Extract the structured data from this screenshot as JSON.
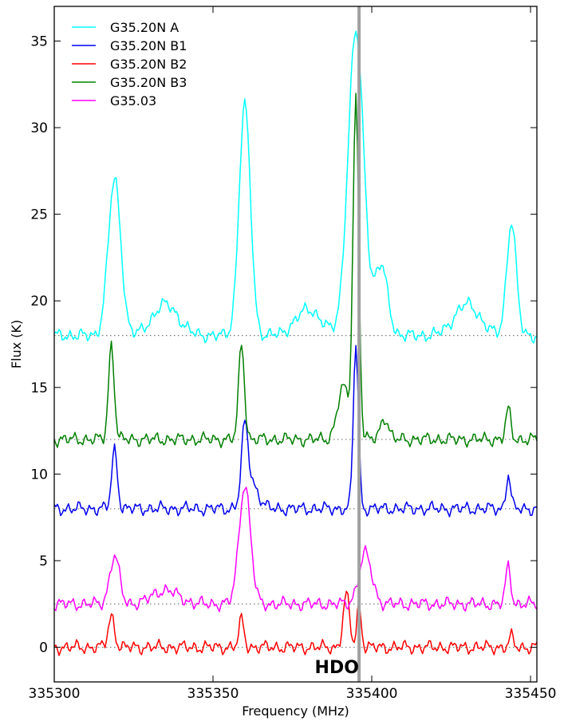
{
  "chart_data": {
    "type": "line",
    "title": "",
    "xlabel": "Frequency (MHz)",
    "ylabel": "Flux (K)",
    "xlim": [
      335300,
      335452
    ],
    "ylim": [
      -2,
      37
    ],
    "x_ticks": [
      335300,
      335350,
      335400,
      335450
    ],
    "y_ticks": [
      0,
      5,
      10,
      15,
      20,
      25,
      30,
      35
    ],
    "grid": false,
    "legend_position": "top-left",
    "legend": [
      "G35.20N A",
      "G35.20N B1",
      "G35.20N B2",
      "G35.20N B3",
      "G35.03"
    ],
    "baselines": [
      {
        "y": 18,
        "style": "dotted"
      },
      {
        "y": 12,
        "style": "dotted"
      },
      {
        "y": 8,
        "style": "dotted"
      },
      {
        "y": 2.5,
        "style": "dotted"
      },
      {
        "y": 0,
        "style": "dotted"
      }
    ],
    "marker_line": {
      "x": 335396,
      "color": "#a0a0a0"
    },
    "annotation": {
      "text": "HDO",
      "x": 335389,
      "y": -1.5
    },
    "series": [
      {
        "name": "G35.20N A",
        "color": "#00ffff",
        "baseline": 18,
        "peaks": [
          [
            335319,
            9.0,
            2.0
          ],
          [
            335360,
            13.3,
            1.8
          ],
          [
            335395,
            17.5,
            2.5
          ],
          [
            335403,
            4.0,
            2.0
          ],
          [
            335444,
            6.6,
            1.5
          ],
          [
            335335,
            1.8,
            4.0
          ],
          [
            335380,
            1.5,
            4.0
          ],
          [
            335430,
            1.8,
            4.0
          ]
        ]
      },
      {
        "name": "G35.20N B1",
        "color": "#0000ee",
        "baseline": 8,
        "peaks": [
          [
            335319,
            3.4,
            0.9
          ],
          [
            335360,
            4.0,
            1.0
          ],
          [
            335362,
            1.5,
            2.2
          ],
          [
            335395,
            9.5,
            0.8
          ],
          [
            335443,
            2.0,
            0.7
          ]
        ]
      },
      {
        "name": "G35.20N B2",
        "color": "#ff0000",
        "baseline": 0,
        "peaks": [
          [
            335318,
            1.8,
            1.0
          ],
          [
            335359,
            1.6,
            0.8
          ],
          [
            335392,
            3.0,
            1.0
          ],
          [
            335396,
            2.5,
            0.7
          ],
          [
            335444,
            0.6,
            0.7
          ]
        ]
      },
      {
        "name": "G35.20N B3",
        "color": "#008000",
        "baseline": 12,
        "peaks": [
          [
            335318,
            5.5,
            0.9
          ],
          [
            335359,
            5.6,
            0.9
          ],
          [
            335395,
            19.5,
            0.9
          ],
          [
            335391,
            3.0,
            1.8
          ],
          [
            335404,
            1.3,
            1.2
          ],
          [
            335443,
            1.7,
            0.8
          ]
        ]
      },
      {
        "name": "G35.03",
        "color": "#ff00ff",
        "baseline": 2.5,
        "peaks": [
          [
            335319,
            2.8,
            1.5
          ],
          [
            335360,
            6.9,
            1.8
          ],
          [
            335398,
            2.9,
            2.0
          ],
          [
            335443,
            2.2,
            0.8
          ],
          [
            335335,
            0.8,
            4.0
          ]
        ]
      }
    ]
  }
}
